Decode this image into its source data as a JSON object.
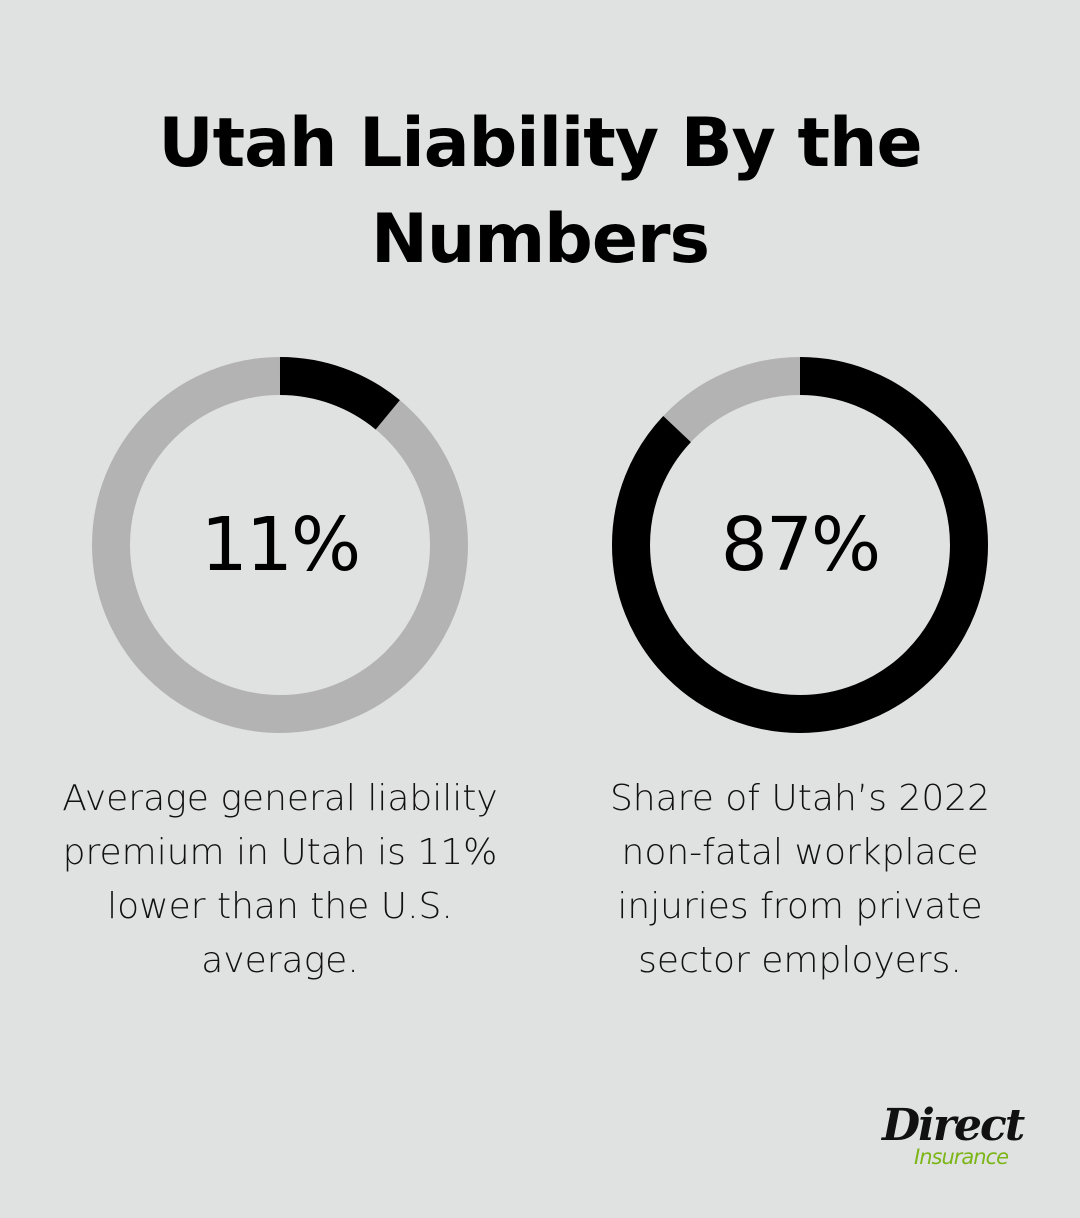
{
  "title": "Utah Liability By the Numbers",
  "colors": {
    "background": "#e0e2e1",
    "ring_track": "#b3b3b3",
    "ring_fill": "#000000",
    "logo_green": "#7cb518"
  },
  "chart_data": [
    {
      "type": "pie",
      "value": 11,
      "max": 100,
      "label": "11%",
      "caption": "Average general liability premium in Utah is 11% lower than the U.S. average."
    },
    {
      "type": "pie",
      "value": 87,
      "max": 100,
      "label": "87%",
      "caption": "Share of Utah’s 2022 non-fatal workplace injuries from private sector employers."
    }
  ],
  "logo": {
    "line1": "Direct",
    "line2": "Insurance"
  }
}
